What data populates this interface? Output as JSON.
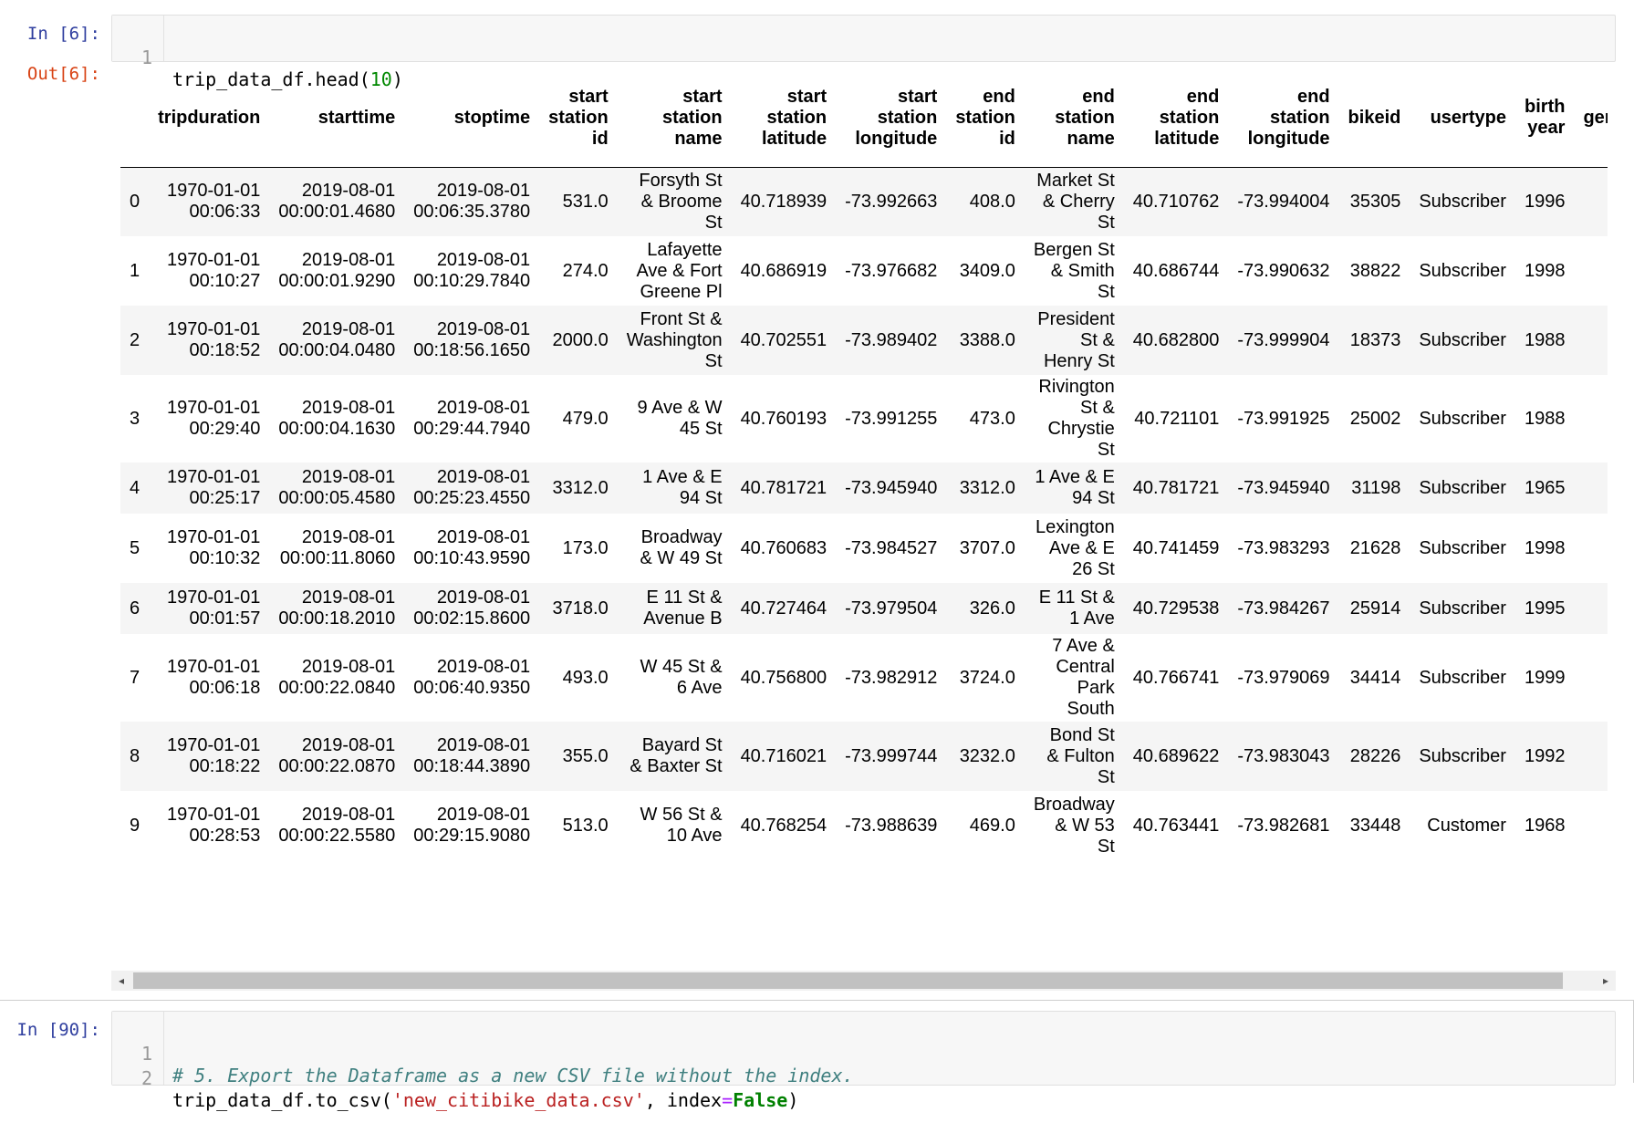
{
  "cell1": {
    "prompt": "In [6]:",
    "lines": [
      {
        "no": "1",
        "code": "trip_data_df.head(",
        "arg": "10",
        "close": ")"
      }
    ]
  },
  "output": {
    "prompt": "Out[6]:",
    "columns": [
      "",
      "tripduration",
      "starttime",
      "stoptime",
      "start station id",
      "start station name",
      "start station latitude",
      "start station longitude",
      "end station id",
      "end station name",
      "end station latitude",
      "end station longitude",
      "bikeid",
      "usertype",
      "birth year",
      "gend"
    ],
    "rows": [
      [
        "0",
        "1970-01-01 00:06:33",
        "2019-08-01 00:00:01.4680",
        "2019-08-01 00:06:35.3780",
        "531.0",
        "Forsyth St & Broome St",
        "40.718939",
        "-73.992663",
        "408.0",
        "Market St & Cherry St",
        "40.710762",
        "-73.994004",
        "35305",
        "Subscriber",
        "1996",
        ""
      ],
      [
        "1",
        "1970-01-01 00:10:27",
        "2019-08-01 00:00:01.9290",
        "2019-08-01 00:10:29.7840",
        "274.0",
        "Lafayette Ave & Fort Greene Pl",
        "40.686919",
        "-73.976682",
        "3409.0",
        "Bergen St & Smith St",
        "40.686744",
        "-73.990632",
        "38822",
        "Subscriber",
        "1998",
        ""
      ],
      [
        "2",
        "1970-01-01 00:18:52",
        "2019-08-01 00:00:04.0480",
        "2019-08-01 00:18:56.1650",
        "2000.0",
        "Front St & Washington St",
        "40.702551",
        "-73.989402",
        "3388.0",
        "President St & Henry St",
        "40.682800",
        "-73.999904",
        "18373",
        "Subscriber",
        "1988",
        ""
      ],
      [
        "3",
        "1970-01-01 00:29:40",
        "2019-08-01 00:00:04.1630",
        "2019-08-01 00:29:44.7940",
        "479.0",
        "9 Ave & W 45 St",
        "40.760193",
        "-73.991255",
        "473.0",
        "Rivington St & Chrystie St",
        "40.721101",
        "-73.991925",
        "25002",
        "Subscriber",
        "1988",
        ""
      ],
      [
        "4",
        "1970-01-01 00:25:17",
        "2019-08-01 00:00:05.4580",
        "2019-08-01 00:25:23.4550",
        "3312.0",
        "1 Ave & E 94 St",
        "40.781721",
        "-73.945940",
        "3312.0",
        "1 Ave & E 94 St",
        "40.781721",
        "-73.945940",
        "31198",
        "Subscriber",
        "1965",
        ""
      ],
      [
        "5",
        "1970-01-01 00:10:32",
        "2019-08-01 00:00:11.8060",
        "2019-08-01 00:10:43.9590",
        "173.0",
        "Broadway & W 49 St",
        "40.760683",
        "-73.984527",
        "3707.0",
        "Lexington Ave & E 26 St",
        "40.741459",
        "-73.983293",
        "21628",
        "Subscriber",
        "1998",
        ""
      ],
      [
        "6",
        "1970-01-01 00:01:57",
        "2019-08-01 00:00:18.2010",
        "2019-08-01 00:02:15.8600",
        "3718.0",
        "E 11 St & Avenue B",
        "40.727464",
        "-73.979504",
        "326.0",
        "E 11 St & 1 Ave",
        "40.729538",
        "-73.984267",
        "25914",
        "Subscriber",
        "1995",
        ""
      ],
      [
        "7",
        "1970-01-01 00:06:18",
        "2019-08-01 00:00:22.0840",
        "2019-08-01 00:06:40.9350",
        "493.0",
        "W 45 St & 6 Ave",
        "40.756800",
        "-73.982912",
        "3724.0",
        "7 Ave & Central Park South",
        "40.766741",
        "-73.979069",
        "34414",
        "Subscriber",
        "1999",
        ""
      ],
      [
        "8",
        "1970-01-01 00:18:22",
        "2019-08-01 00:00:22.0870",
        "2019-08-01 00:18:44.3890",
        "355.0",
        "Bayard St & Baxter St",
        "40.716021",
        "-73.999744",
        "3232.0",
        "Bond St & Fulton St",
        "40.689622",
        "-73.983043",
        "28226",
        "Subscriber",
        "1992",
        ""
      ],
      [
        "9",
        "1970-01-01 00:28:53",
        "2019-08-01 00:00:22.5580",
        "2019-08-01 00:29:15.9080",
        "513.0",
        "W 56 St & 10 Ave",
        "40.768254",
        "-73.988639",
        "469.0",
        "Broadway & W 53 St",
        "40.763441",
        "-73.982681",
        "33448",
        "Customer",
        "1968",
        ""
      ]
    ]
  },
  "cell2": {
    "prompt": "In [90]:",
    "line1_no": "1",
    "line1_comment": "# 5. Export the Dataframe as a new CSV file without the index.",
    "line2_no": "2",
    "line2_a": "trip_data_df.to_csv(",
    "line2_str": "'new_citibike_data.csv'",
    "line2_b": ", index",
    "line2_eq": "=",
    "line2_kw": "False",
    "line2_c": ")"
  },
  "scrollbar": {
    "left_arrow": "◂",
    "right_arrow": "▸"
  }
}
